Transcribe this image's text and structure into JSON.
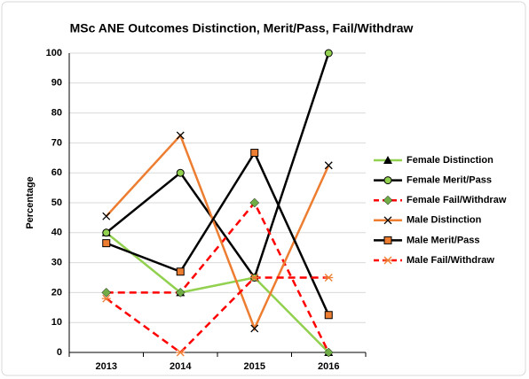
{
  "chart_data": {
    "type": "line",
    "title": "MSc ANE Outcomes  Distinction, Merit/Pass, Fail/Withdraw",
    "y_label": "Percentage",
    "categories": [
      "2013",
      "2014",
      "2015",
      "2016"
    ],
    "ylim": [
      0,
      100
    ],
    "yticks": [
      0,
      10,
      20,
      30,
      40,
      50,
      60,
      70,
      80,
      90,
      100
    ],
    "grid": true,
    "legend": "right",
    "series": [
      {
        "name": "Female Distinction",
        "color": "#92d050",
        "marker": "triangle",
        "marker_color": "#000000",
        "dash": false,
        "values": [
          40,
          20,
          25,
          0
        ]
      },
      {
        "name": "Female Merit/Pass",
        "color": "#000000",
        "marker": "circle",
        "marker_color": "#92d050",
        "dash": false,
        "values": [
          40,
          60,
          25,
          100
        ]
      },
      {
        "name": "Female Fail/Withdraw",
        "color": "#ff0000",
        "marker": "diamond",
        "marker_color": "#70ad47",
        "dash": true,
        "values": [
          20,
          20,
          50,
          0
        ]
      },
      {
        "name": "Male Distinction",
        "color": "#ed7d31",
        "marker": "x",
        "marker_color": "#000000",
        "dash": false,
        "values": [
          45.5,
          72.5,
          8,
          62.5
        ]
      },
      {
        "name": "Male Merit/Pass",
        "color": "#000000",
        "marker": "square",
        "marker_color": "#ed7d31",
        "dash": false,
        "values": [
          36.5,
          27,
          66.7,
          12.5
        ]
      },
      {
        "name": "Male Fail/Withdraw",
        "color": "#ff0000",
        "marker": "star",
        "marker_color": "#ed7d31",
        "dash": true,
        "values": [
          18,
          0,
          25,
          25
        ]
      }
    ]
  }
}
